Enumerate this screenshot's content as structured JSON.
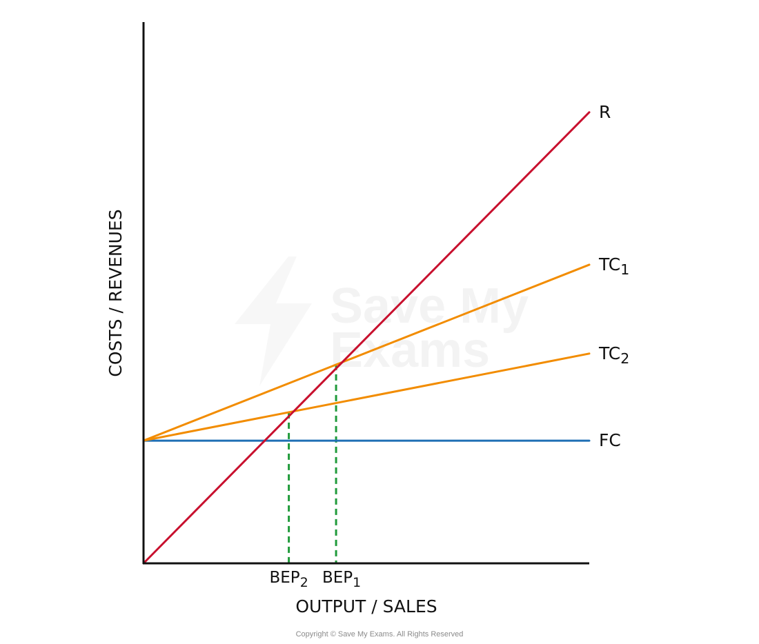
{
  "chart_data": {
    "type": "line",
    "xlabel": "OUTPUT / SALES",
    "ylabel": "COSTS / REVENUES",
    "xlim": [
      0,
      100
    ],
    "ylim": [
      0,
      120
    ],
    "series": [
      {
        "name": "R",
        "sub": "",
        "color": "#c8102e",
        "points": [
          [
            0,
            0
          ],
          [
            100,
            100
          ]
        ]
      },
      {
        "name": "TC",
        "sub": "1",
        "color": "#f28c00",
        "points": [
          [
            0,
            27.2
          ],
          [
            100,
            66.2
          ]
        ]
      },
      {
        "name": "TC",
        "sub": "2",
        "color": "#f28c00",
        "points": [
          [
            0,
            27.2
          ],
          [
            100,
            46.5
          ]
        ]
      },
      {
        "name": "FC",
        "sub": "",
        "color": "#1f6fb5",
        "points": [
          [
            0,
            27.2
          ],
          [
            100,
            27.2
          ]
        ]
      }
    ],
    "breakeven": [
      {
        "label": "BEP",
        "sub": "2",
        "x": 32.6,
        "y": 33.5,
        "color": "#1f9a3a"
      },
      {
        "label": "BEP",
        "sub": "1",
        "x": 43.2,
        "y": 44.2,
        "color": "#1f9a3a"
      }
    ]
  },
  "watermark": {
    "line1": "Save My",
    "line2": "Exams"
  },
  "copyright": "Copyright © Save My Exams. All Rights Reserved"
}
